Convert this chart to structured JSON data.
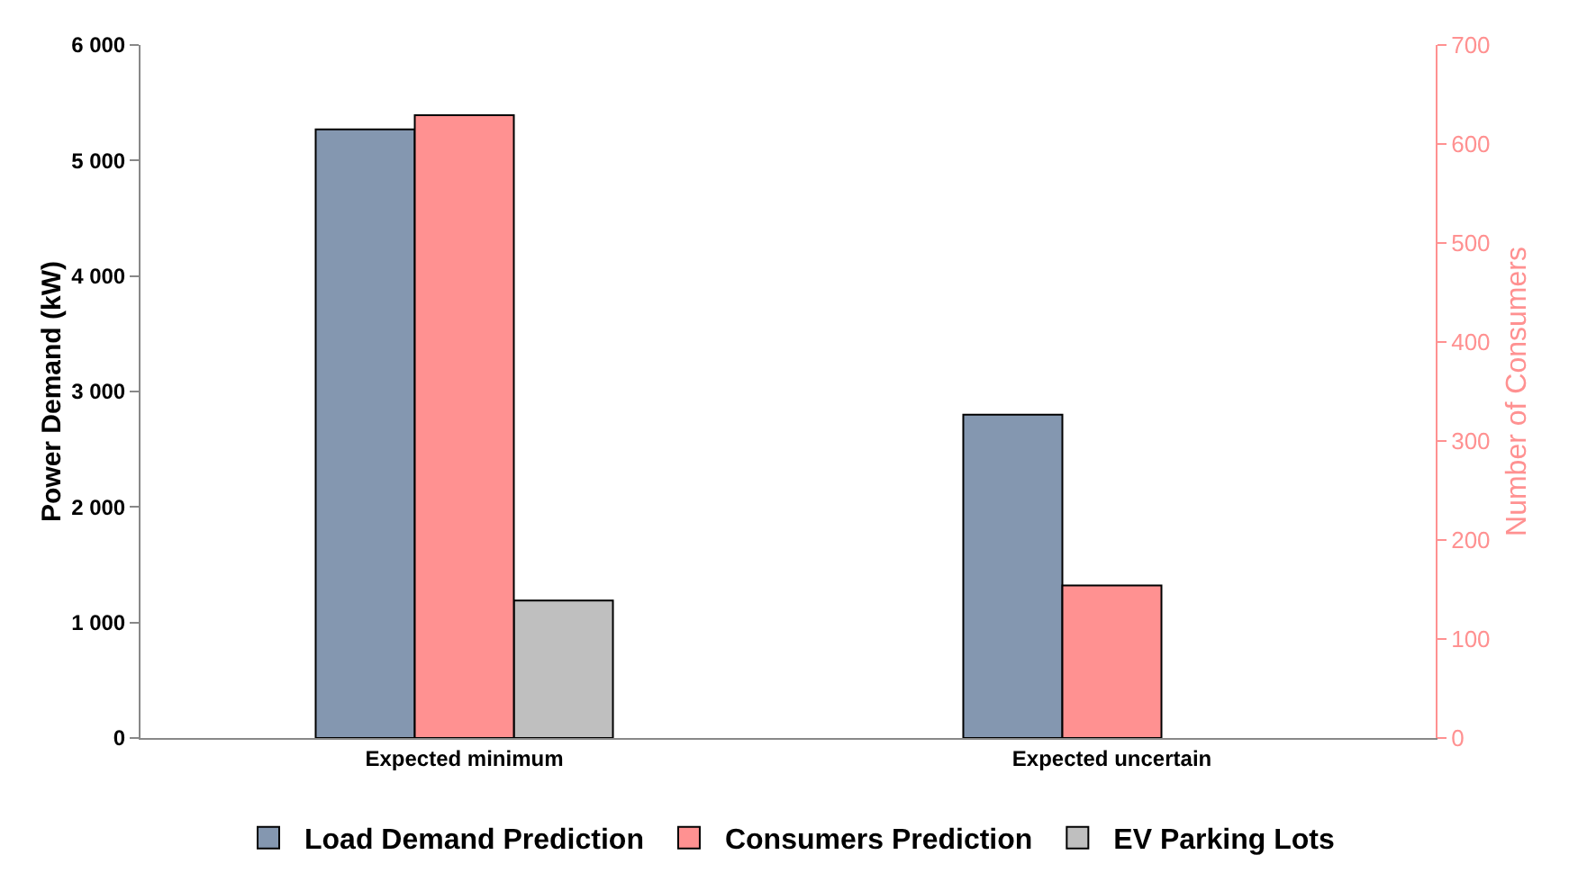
{
  "chart_data": {
    "type": "bar",
    "categories": [
      "Expected minimum",
      "Expected uncertain"
    ],
    "series": [
      {
        "name": "Load Demand Prediction",
        "color": "#8497b0",
        "values": [
          5270,
          2800
        ]
      },
      {
        "name": "Consumers Prediction",
        "color": "#ff9191",
        "values": [
          629,
          154
        ],
        "axis": "y2"
      },
      {
        "name": "EV Parking Lots",
        "color": "#bfbfbf",
        "values": [
          1190,
          null
        ]
      }
    ],
    "ylabel": "Power Demand (kW)",
    "y2label": "Number of Consumers",
    "ylim": [
      0,
      6000
    ],
    "yticks": [
      0,
      {
        "value": 1000,
        "label": "1 000"
      },
      {
        "value": 2000,
        "label": "2 000"
      },
      {
        "value": 3000,
        "label": "3 000"
      },
      {
        "value": 4000,
        "label": "4 000"
      },
      {
        "value": 5000,
        "label": "5 000"
      },
      {
        "value": 6000,
        "label": "6 000"
      }
    ],
    "y2lim": [
      0,
      700
    ],
    "y2ticks": [
      0,
      100,
      200,
      300,
      400,
      500,
      600,
      700
    ],
    "grid": false,
    "legend": "bottom"
  }
}
